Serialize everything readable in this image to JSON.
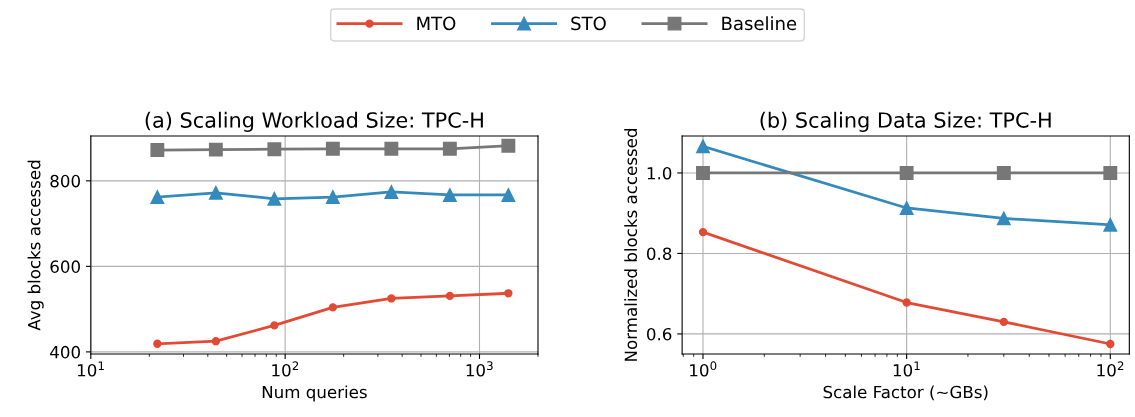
{
  "chart_data": [
    {
      "type": "line",
      "title": "(a) Scaling Workload Size: TPC-H",
      "xlabel": "Num queries",
      "ylabel": "Avg blocks accessed",
      "log": "x",
      "grid": true,
      "legend": "top",
      "x": [
        22,
        44,
        88,
        176,
        352,
        704,
        1408
      ],
      "xlim": [
        10,
        2000
      ],
      "xticks": [
        {
          "value": 10,
          "label": "10$^{1}$"
        },
        {
          "value": 100,
          "label": "10$^{2}$"
        },
        {
          "value": 1000,
          "label": "10$^{3}$"
        }
      ],
      "ylim": [
        395,
        905
      ],
      "yticks": [
        400,
        600,
        800
      ],
      "series": [
        {
          "name": "MTO",
          "color": "#e24a33",
          "marker": "circle",
          "values": [
            419,
            425,
            462,
            504,
            525,
            531,
            537
          ]
        },
        {
          "name": "STO",
          "color": "#348abd",
          "marker": "triangle",
          "values": [
            762,
            772,
            758,
            762,
            774,
            767,
            767
          ]
        },
        {
          "name": "Baseline",
          "color": "#777777",
          "marker": "square",
          "values": [
            872,
            873,
            874,
            875,
            875,
            875,
            882
          ]
        }
      ]
    },
    {
      "type": "line",
      "title": "(b) Scaling Data Size: TPC-H",
      "xlabel": "Scale Factor (~GBs)",
      "ylabel": "Normalized blocks accessed",
      "log": "x",
      "grid": true,
      "x": [
        1,
        10,
        30,
        100
      ],
      "xlim": [
        0.79,
        124
      ],
      "xticks": [
        {
          "value": 1,
          "label": "10$^{0}$"
        },
        {
          "value": 10,
          "label": "10$^{1}$"
        },
        {
          "value": 100,
          "label": "10$^{2}$"
        }
      ],
      "ylim": [
        0.55,
        1.092
      ],
      "yticks": [
        0.6,
        0.8,
        {
          "value": 1,
          "label": "1.0"
        }
      ],
      "series": [
        {
          "name": "MTO",
          "color": "#e24a33",
          "marker": "circle",
          "values": [
            0.853,
            0.678,
            0.63,
            0.575
          ]
        },
        {
          "name": "STO",
          "color": "#348abd",
          "marker": "triangle",
          "values": [
            1.066,
            0.913,
            0.887,
            0.871
          ]
        },
        {
          "name": "Baseline",
          "color": "#777777",
          "marker": "square",
          "values": [
            1.0,
            1.0,
            1.0,
            1.0
          ]
        }
      ]
    }
  ]
}
